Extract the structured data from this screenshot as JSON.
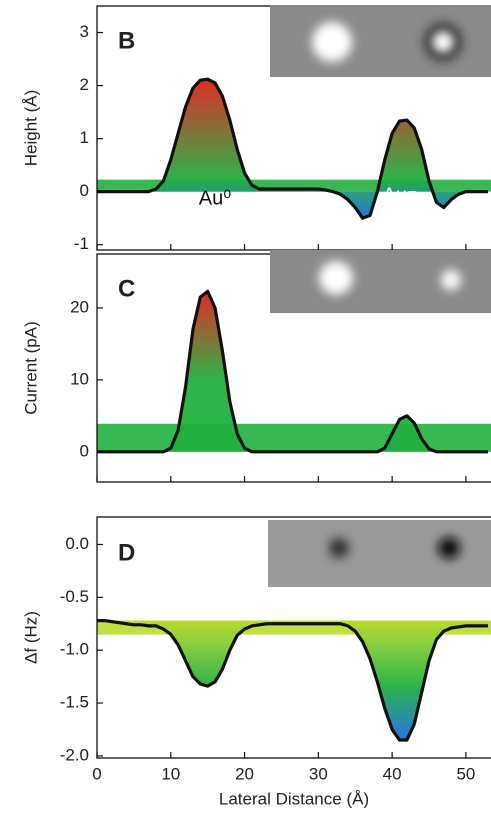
{
  "chart_data": [
    {
      "type": "line",
      "panel_label": "B",
      "y_label": "Height (Å)",
      "color": "#111111",
      "fill_colors": [
        "#e0201a",
        "#22b040",
        "#1a6ee0"
      ],
      "annotations": [
        "Au⁰",
        "Au⁻"
      ],
      "x": [
        0,
        1,
        2,
        3,
        4,
        5,
        6,
        7,
        8,
        9,
        10,
        11,
        12,
        13,
        14,
        15,
        16,
        17,
        18,
        19,
        20,
        21,
        22,
        23,
        24,
        25,
        26,
        27,
        28,
        29,
        30,
        31,
        32,
        33,
        34,
        35,
        36,
        37,
        38,
        39,
        40,
        41,
        42,
        43,
        44,
        45,
        46,
        47,
        48,
        49,
        50,
        51,
        52,
        53
      ],
      "values": [
        0,
        0,
        0,
        0,
        0,
        0,
        0,
        0,
        0.05,
        0.2,
        0.6,
        1.1,
        1.6,
        1.95,
        2.1,
        2.12,
        2.05,
        1.8,
        1.35,
        0.8,
        0.35,
        0.12,
        0.05,
        0.05,
        0.05,
        0.05,
        0.05,
        0.05,
        0.05,
        0.05,
        0.05,
        0.03,
        0,
        -0.05,
        -0.15,
        -0.3,
        -0.5,
        -0.45,
        0,
        0.6,
        1.1,
        1.33,
        1.35,
        1.2,
        0.8,
        0.2,
        -0.2,
        -0.3,
        -0.15,
        -0.05,
        0,
        0,
        0,
        0
      ],
      "ylim": [
        -1.1,
        3.5
      ],
      "yticks": [
        -1,
        0,
        1,
        2,
        3
      ]
    },
    {
      "type": "line",
      "panel_label": "C",
      "y_label": "Current (pA)",
      "color": "#111111",
      "fill_colors": [
        "#e0201a",
        "#22b040",
        "#22b040"
      ],
      "x": [
        0,
        1,
        2,
        3,
        4,
        5,
        6,
        7,
        8,
        9,
        10,
        11,
        12,
        13,
        14,
        15,
        16,
        17,
        18,
        19,
        20,
        21,
        22,
        23,
        24,
        25,
        26,
        27,
        28,
        29,
        30,
        31,
        32,
        33,
        34,
        35,
        36,
        37,
        38,
        39,
        40,
        41,
        42,
        43,
        44,
        45,
        46,
        47,
        48,
        49,
        50,
        51,
        52,
        53
      ],
      "values": [
        0,
        0,
        0,
        0,
        0,
        0,
        0,
        0,
        0,
        0,
        0.5,
        3,
        9,
        17,
        21.5,
        22.3,
        20,
        14,
        7,
        2.5,
        0.5,
        0,
        0,
        0,
        0,
        0,
        0,
        0,
        0,
        0,
        0,
        0,
        0,
        0,
        0,
        0,
        0,
        0,
        0,
        0.5,
        2.5,
        4.5,
        5,
        4,
        1.8,
        0.4,
        0,
        0,
        0,
        0,
        0,
        0,
        0,
        0
      ],
      "ylim": [
        -4.2,
        27.5
      ],
      "yticks": [
        0,
        10,
        20
      ]
    },
    {
      "type": "line",
      "panel_label": "D",
      "y_label": "Δf (Hz)",
      "x_label": "Lateral Distance (Å)",
      "color": "#111111",
      "fill_colors": [
        "#b8dc30",
        "#22b040",
        "#1a6ee0"
      ],
      "x": [
        0,
        1,
        2,
        3,
        4,
        5,
        6,
        7,
        8,
        9,
        10,
        11,
        12,
        13,
        14,
        15,
        16,
        17,
        18,
        19,
        20,
        21,
        22,
        23,
        24,
        25,
        26,
        27,
        28,
        29,
        30,
        31,
        32,
        33,
        34,
        35,
        36,
        37,
        38,
        39,
        40,
        41,
        42,
        43,
        44,
        45,
        46,
        47,
        48,
        49,
        50,
        51,
        52,
        53
      ],
      "values": [
        -0.72,
        -0.72,
        -0.73,
        -0.74,
        -0.75,
        -0.76,
        -0.76,
        -0.77,
        -0.77,
        -0.8,
        -0.85,
        -0.95,
        -1.1,
        -1.25,
        -1.32,
        -1.34,
        -1.3,
        -1.18,
        -1.0,
        -0.86,
        -0.8,
        -0.77,
        -0.76,
        -0.75,
        -0.75,
        -0.75,
        -0.75,
        -0.75,
        -0.75,
        -0.75,
        -0.75,
        -0.75,
        -0.75,
        -0.75,
        -0.77,
        -0.82,
        -0.92,
        -1.08,
        -1.3,
        -1.55,
        -1.75,
        -1.85,
        -1.85,
        -1.7,
        -1.4,
        -1.1,
        -0.9,
        -0.82,
        -0.79,
        -0.78,
        -0.77,
        -0.77,
        -0.77,
        -0.77
      ],
      "ylim": [
        -2.02,
        0.26
      ],
      "yticks": [
        {
          "value": -2,
          "label": "-2.0"
        },
        {
          "value": -1.5,
          "label": "-1.5"
        },
        {
          "value": -1,
          "label": "-1.0"
        },
        {
          "value": -0.5,
          "label": "-0.5"
        },
        {
          "value": 0,
          "label": "0.0"
        }
      ],
      "xlim": [
        0,
        53.4
      ],
      "xticks": [
        0,
        10,
        20,
        30,
        40,
        50
      ]
    }
  ]
}
